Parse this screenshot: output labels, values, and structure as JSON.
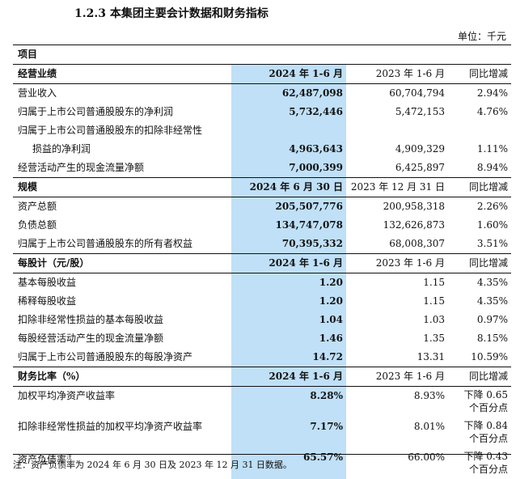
{
  "title": "1.2.3 本集团主要会计数据和财务指标",
  "unit": "单位：千元",
  "header_item": "项目",
  "sections": [
    {
      "label": "经营业绩",
      "col_current": "2024 年 1-6 月",
      "col_prior": "2023 年 1-6 月",
      "col_change": "同比增减",
      "rows": [
        {
          "label": "营业收入",
          "current": "62,487,098",
          "prior": "60,704,794",
          "change": "2.94%"
        },
        {
          "label": "归属于上市公司普通股股东的净利润",
          "current": "5,732,446",
          "prior": "5,472,153",
          "change": "4.76%"
        },
        {
          "label": "归属于上市公司普通股股东的扣除非经常性",
          "current": "",
          "prior": "",
          "change": ""
        },
        {
          "label": "损益的净利润",
          "current": "4,963,643",
          "prior": "4,909,329",
          "change": "1.11%"
        },
        {
          "label": "经营活动产生的现金流量净额",
          "current": "7,000,399",
          "prior": "6,425,897",
          "change": "8.94%"
        }
      ]
    },
    {
      "label": "规模",
      "col_current": "2024 年 6 月 30 日",
      "col_prior": "2023 年 12 月 31 日",
      "col_change": "同比增减",
      "rows": [
        {
          "label": "资产总额",
          "current": "205,507,776",
          "prior": "200,958,318",
          "change": "2.26%"
        },
        {
          "label": "负债总额",
          "current": "134,747,078",
          "prior": "132,626,873",
          "change": "1.60%"
        },
        {
          "label": "归属于上市公司普通股股东的所有者权益",
          "current": "70,395,332",
          "prior": "68,008,307",
          "change": "3.51%"
        }
      ]
    },
    {
      "label": "每股计（元/股）",
      "col_current": "2024 年 1-6 月",
      "col_prior": "2023 年 1-6 月",
      "col_change": "同比增减",
      "rows": [
        {
          "label": "基本每股收益",
          "current": "1.20",
          "prior": "1.15",
          "change": "4.35%"
        },
        {
          "label": "稀释每股收益",
          "current": "1.20",
          "prior": "1.15",
          "change": "4.35%"
        },
        {
          "label": "扣除非经常性损益的基本每股收益",
          "current": "1.04",
          "prior": "1.03",
          "change": "0.97%"
        },
        {
          "label": "每股经营活动产生的现金流量净额",
          "current": "1.46",
          "prior": "1.35",
          "change": "8.15%"
        },
        {
          "label": "归属于上市公司普通股股东的每股净资产",
          "current": "14.72",
          "prior": "13.31",
          "change": "10.59%"
        }
      ]
    },
    {
      "label": "财务比率（%）",
      "col_current": "2024 年 1-6 月",
      "col_prior": "2023 年 1-6 月",
      "col_change": "同比增减",
      "rows": [
        {
          "label": "加权平均净资产收益率",
          "current": "8.28%",
          "prior": "8.93%",
          "change": "下降 0.65 个百分点"
        },
        {
          "label": "扣除非经常性损益的加权平均净资产收益率",
          "current": "7.17%",
          "prior": "8.01%",
          "change": "下降 0.84 个百分点"
        },
        {
          "label": "资产负债率",
          "note_mark": "注",
          "current": "65.57%",
          "prior": "66.00%",
          "change": "下降 0.43 个百分点"
        }
      ]
    }
  ],
  "footnote": "注：资产负债率为 2024 年 6 月 30 日及 2023 年 12 月 31 日数据。"
}
